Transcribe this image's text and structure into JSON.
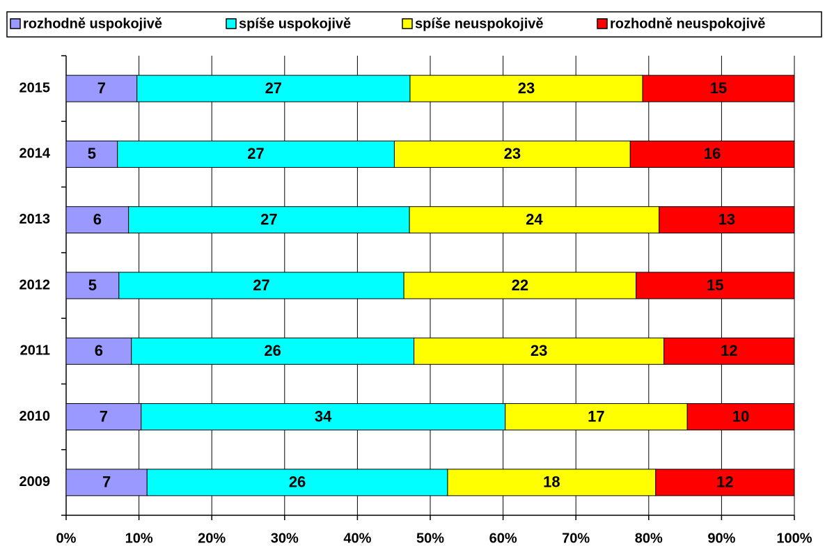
{
  "chart_data": {
    "type": "bar",
    "orientation": "horizontal",
    "stacking": "percent",
    "categories": [
      "2015",
      "2014",
      "2013",
      "2012",
      "2011",
      "2010",
      "2009"
    ],
    "series": [
      {
        "name": "rozhodně uspokojivě",
        "color": "#9999ff",
        "values": [
          7,
          5,
          6,
          5,
          6,
          7,
          7
        ]
      },
      {
        "name": "spíše uspokojivě",
        "color": "#00ffff",
        "values": [
          27,
          27,
          27,
          27,
          26,
          34,
          26
        ]
      },
      {
        "name": "spíše neuspokojivě",
        "color": "#ffff00",
        "values": [
          23,
          23,
          24,
          22,
          23,
          17,
          18
        ]
      },
      {
        "name": "rozhodně neuspokojivě",
        "color": "#ff0000",
        "values": [
          15,
          16,
          13,
          15,
          12,
          10,
          12
        ]
      }
    ],
    "xlim": [
      0,
      100
    ],
    "xticks": [
      {
        "value": 0,
        "label": "0%"
      },
      {
        "value": 10,
        "label": "10%"
      },
      {
        "value": 20,
        "label": "20%"
      },
      {
        "value": 30,
        "label": "30%"
      },
      {
        "value": 40,
        "label": "40%"
      },
      {
        "value": 50,
        "label": "50%"
      },
      {
        "value": 60,
        "label": "60%"
      },
      {
        "value": 70,
        "label": "70%"
      },
      {
        "value": 80,
        "label": "80%"
      },
      {
        "value": 90,
        "label": "90%"
      },
      {
        "value": 100,
        "label": "100%"
      }
    ],
    "grid": true,
    "legend": "top"
  }
}
